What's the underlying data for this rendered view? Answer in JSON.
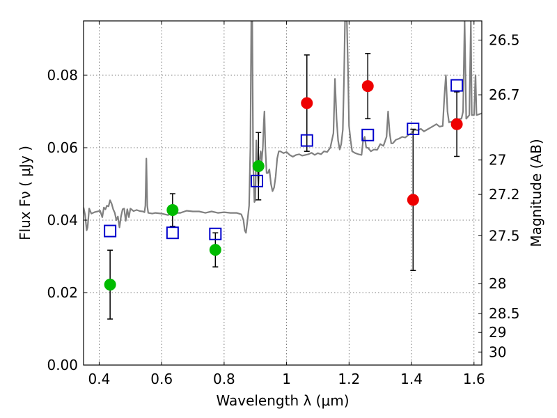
{
  "chart_data": {
    "type": "scatter",
    "xlabel": "Wavelength  λ (μm)",
    "ylabel": "Flux  Fν  ( μJy )",
    "y2label": "Magnitude (AB)",
    "xlim": [
      0.35,
      1.625
    ],
    "ylim": [
      0.0,
      0.095
    ],
    "grid": true,
    "x_ticks": [
      0.4,
      0.6,
      0.8,
      1.0,
      1.2,
      1.4,
      1.6
    ],
    "x_tick_labels": [
      "0.4",
      "0.6",
      "0.8",
      "1",
      "1.2",
      "1.4",
      "1.6"
    ],
    "y_ticks": [
      0.0,
      0.02,
      0.04,
      0.06,
      0.08
    ],
    "y_tick_labels": [
      "0.00",
      "0.02",
      "0.04",
      "0.06",
      "0.08"
    ],
    "y2_ticks": [
      {
        "label": "26.5",
        "flux": 0.0897
      },
      {
        "label": "26.7",
        "flux": 0.0746
      },
      {
        "label": "27",
        "flux": 0.0566
      },
      {
        "label": "27.2",
        "flux": 0.0471
      },
      {
        "label": "27.5",
        "flux": 0.0357
      },
      {
        "label": "28",
        "flux": 0.0225
      },
      {
        "label": "28.5",
        "flux": 0.0142
      },
      {
        "label": "29",
        "flux": 0.009
      },
      {
        "label": "30",
        "flux": 0.0036
      }
    ],
    "series": [
      {
        "marker": "circle",
        "color": "#00bb00",
        "points": [
          {
            "x": 0.435,
            "y": 0.0222,
            "err": 0.0095
          },
          {
            "x": 0.635,
            "y": 0.0428,
            "err": 0.0045
          },
          {
            "x": 0.772,
            "y": 0.0318,
            "err": 0.0047
          },
          {
            "x": 0.91,
            "y": 0.0549,
            "err": 0.0093
          }
        ]
      },
      {
        "marker": "circle",
        "color": "#ee0000",
        "points": [
          {
            "x": 1.065,
            "y": 0.0723,
            "err": 0.0133
          },
          {
            "x": 1.26,
            "y": 0.077,
            "err": 0.009
          },
          {
            "x": 1.405,
            "y": 0.0456,
            "err": 0.0195
          },
          {
            "x": 1.545,
            "y": 0.0665,
            "err": 0.0089
          }
        ]
      },
      {
        "marker": "open-square",
        "color": "#0000cc",
        "points": [
          {
            "x": 0.435,
            "y": 0.037
          },
          {
            "x": 0.635,
            "y": 0.0365
          },
          {
            "x": 0.772,
            "y": 0.0362
          },
          {
            "x": 0.905,
            "y": 0.0508
          },
          {
            "x": 1.065,
            "y": 0.062
          },
          {
            "x": 1.26,
            "y": 0.0635
          },
          {
            "x": 1.405,
            "y": 0.0652
          },
          {
            "x": 1.545,
            "y": 0.0772
          }
        ]
      }
    ],
    "sed_model": {
      "color": "#808080",
      "points": [
        [
          0.35,
          0.0435
        ],
        [
          0.355,
          0.0415
        ],
        [
          0.36,
          0.0372
        ],
        [
          0.363,
          0.038
        ],
        [
          0.368,
          0.0432
        ],
        [
          0.375,
          0.0418
        ],
        [
          0.385,
          0.0422
        ],
        [
          0.395,
          0.0424
        ],
        [
          0.403,
          0.0426
        ],
        [
          0.41,
          0.0408
        ],
        [
          0.415,
          0.0435
        ],
        [
          0.42,
          0.043
        ],
        [
          0.425,
          0.044
        ],
        [
          0.43,
          0.0438
        ],
        [
          0.435,
          0.0455
        ],
        [
          0.44,
          0.0445
        ],
        [
          0.445,
          0.043
        ],
        [
          0.45,
          0.042
        ],
        [
          0.455,
          0.04
        ],
        [
          0.46,
          0.041
        ],
        [
          0.465,
          0.038
        ],
        [
          0.47,
          0.041
        ],
        [
          0.475,
          0.043
        ],
        [
          0.48,
          0.0432
        ],
        [
          0.485,
          0.0398
        ],
        [
          0.49,
          0.043
        ],
        [
          0.495,
          0.0408
        ],
        [
          0.5,
          0.0432
        ],
        [
          0.51,
          0.0425
        ],
        [
          0.52,
          0.0428
        ],
        [
          0.53,
          0.0425
        ],
        [
          0.54,
          0.0424
        ],
        [
          0.545,
          0.0422
        ],
        [
          0.548,
          0.044
        ],
        [
          0.551,
          0.057
        ],
        [
          0.554,
          0.044
        ],
        [
          0.557,
          0.042
        ],
        [
          0.57,
          0.0418
        ],
        [
          0.58,
          0.042
        ],
        [
          0.6,
          0.0418
        ],
        [
          0.62,
          0.0414
        ],
        [
          0.64,
          0.042
        ],
        [
          0.66,
          0.042
        ],
        [
          0.68,
          0.0426
        ],
        [
          0.7,
          0.0424
        ],
        [
          0.72,
          0.0424
        ],
        [
          0.74,
          0.042
        ],
        [
          0.76,
          0.0424
        ],
        [
          0.78,
          0.042
        ],
        [
          0.8,
          0.0422
        ],
        [
          0.82,
          0.042
        ],
        [
          0.84,
          0.042
        ],
        [
          0.855,
          0.0416
        ],
        [
          0.862,
          0.04
        ],
        [
          0.866,
          0.0372
        ],
        [
          0.87,
          0.0365
        ],
        [
          0.875,
          0.04
        ],
        [
          0.88,
          0.044
        ],
        [
          0.884,
          0.06
        ],
        [
          0.887,
          0.095
        ],
        [
          0.89,
          0.095
        ],
        [
          0.893,
          0.056
        ],
        [
          0.897,
          0.045
        ],
        [
          0.9,
          0.0455
        ],
        [
          0.903,
          0.062
        ],
        [
          0.906,
          0.056
        ],
        [
          0.91,
          0.05
        ],
        [
          0.914,
          0.057
        ],
        [
          0.917,
          0.059
        ],
        [
          0.92,
          0.056
        ],
        [
          0.924,
          0.06
        ],
        [
          0.927,
          0.067
        ],
        [
          0.929,
          0.07
        ],
        [
          0.932,
          0.06
        ],
        [
          0.936,
          0.053
        ],
        [
          0.94,
          0.053
        ],
        [
          0.945,
          0.054
        ],
        [
          0.95,
          0.05
        ],
        [
          0.955,
          0.048
        ],
        [
          0.96,
          0.049
        ],
        [
          0.965,
          0.052
        ],
        [
          0.97,
          0.057
        ],
        [
          0.975,
          0.059
        ],
        [
          0.98,
          0.059
        ],
        [
          0.99,
          0.0585
        ],
        [
          1.0,
          0.0588
        ],
        [
          1.01,
          0.058
        ],
        [
          1.02,
          0.0575
        ],
        [
          1.03,
          0.058
        ],
        [
          1.04,
          0.0582
        ],
        [
          1.05,
          0.0578
        ],
        [
          1.06,
          0.058
        ],
        [
          1.07,
          0.0582
        ],
        [
          1.08,
          0.0586
        ],
        [
          1.09,
          0.058
        ],
        [
          1.1,
          0.0585
        ],
        [
          1.11,
          0.0582
        ],
        [
          1.12,
          0.059
        ],
        [
          1.13,
          0.0588
        ],
        [
          1.14,
          0.06
        ],
        [
          1.15,
          0.064
        ],
        [
          1.155,
          0.079
        ],
        [
          1.16,
          0.068
        ],
        [
          1.165,
          0.062
        ],
        [
          1.17,
          0.0595
        ],
        [
          1.175,
          0.061
        ],
        [
          1.18,
          0.065
        ],
        [
          1.184,
          0.08
        ],
        [
          1.187,
          0.095
        ],
        [
          1.193,
          0.095
        ],
        [
          1.197,
          0.08
        ],
        [
          1.2,
          0.066
        ],
        [
          1.205,
          0.062
        ],
        [
          1.21,
          0.059
        ],
        [
          1.22,
          0.0585
        ],
        [
          1.23,
          0.0582
        ],
        [
          1.24,
          0.058
        ],
        [
          1.245,
          0.062
        ],
        [
          1.25,
          0.063
        ],
        [
          1.255,
          0.06
        ],
        [
          1.26,
          0.06
        ],
        [
          1.27,
          0.059
        ],
        [
          1.28,
          0.0595
        ],
        [
          1.29,
          0.0594
        ],
        [
          1.3,
          0.061
        ],
        [
          1.31,
          0.0605
        ],
        [
          1.32,
          0.063
        ],
        [
          1.325,
          0.07
        ],
        [
          1.33,
          0.064
        ],
        [
          1.335,
          0.0612
        ],
        [
          1.34,
          0.0612
        ],
        [
          1.35,
          0.0622
        ],
        [
          1.36,
          0.0625
        ],
        [
          1.37,
          0.063
        ],
        [
          1.38,
          0.0628
        ],
        [
          1.39,
          0.0635
        ],
        [
          1.4,
          0.064
        ],
        [
          1.41,
          0.065
        ],
        [
          1.42,
          0.0648
        ],
        [
          1.43,
          0.0652
        ],
        [
          1.44,
          0.0645
        ],
        [
          1.45,
          0.065
        ],
        [
          1.46,
          0.0655
        ],
        [
          1.47,
          0.066
        ],
        [
          1.48,
          0.0665
        ],
        [
          1.49,
          0.0658
        ],
        [
          1.5,
          0.066
        ],
        [
          1.505,
          0.074
        ],
        [
          1.51,
          0.08
        ],
        [
          1.515,
          0.07
        ],
        [
          1.52,
          0.067
        ],
        [
          1.53,
          0.0672
        ],
        [
          1.54,
          0.068
        ],
        [
          1.545,
          0.067
        ],
        [
          1.55,
          0.0675
        ],
        [
          1.555,
          0.068
        ],
        [
          1.56,
          0.068
        ],
        [
          1.565,
          0.07
        ],
        [
          1.57,
          0.095
        ],
        [
          1.575,
          0.068
        ],
        [
          1.585,
          0.069
        ],
        [
          1.59,
          0.095
        ],
        [
          1.593,
          0.069
        ],
        [
          1.6,
          0.069
        ],
        [
          1.605,
          0.08
        ],
        [
          1.608,
          0.069
        ],
        [
          1.615,
          0.0692
        ],
        [
          1.625,
          0.0695
        ]
      ]
    }
  }
}
